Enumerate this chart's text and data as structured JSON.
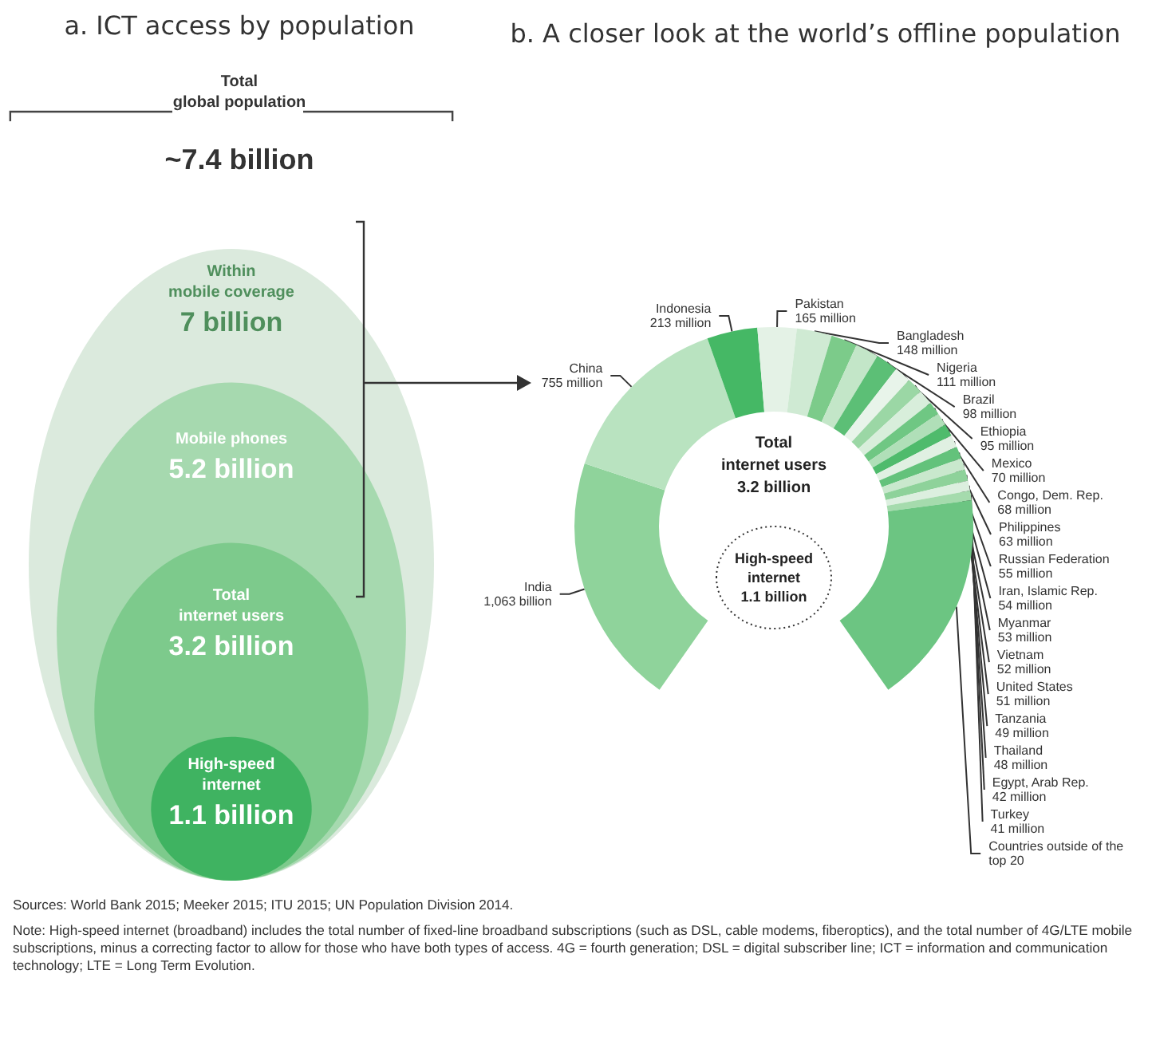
{
  "chart_data": [
    {
      "type": "other",
      "title": "a. ICT access by population",
      "categories": [
        "Total\nglobal population",
        "Within\nmobile coverage",
        "Mobile phones",
        "Total\ninternet users",
        "High-speed\ninternet"
      ],
      "values": [
        7.4,
        7,
        5.2,
        3.2,
        1.1
      ],
      "value_labels": [
        "~7.4 billion",
        "7 billion",
        "5.2 billion",
        "3.2 billion",
        "1.1 billion"
      ],
      "colors": [
        null,
        "#dbeadd",
        "#a6d9af",
        "#7dca8c",
        "#3fb361"
      ]
    },
    {
      "type": "donut",
      "title": "b. A closer look at the world’s offline population",
      "categories": [
        "India",
        "China",
        "Indonesia",
        "Pakistan",
        "Bangladesh",
        "Nigeria",
        "Brazil",
        "Ethiopia",
        "Mexico",
        "Congo, Dem. Rep.",
        "Philippines",
        "Russian Federation",
        "Iran, Islamic Rep.",
        "Myanmar",
        "Vietnam",
        "United States",
        "Tanzania",
        "Thailand",
        "Egypt, Arab Rep.",
        "Turkey",
        "Countries outside of the top 20"
      ],
      "values": [
        1063,
        755,
        213,
        165,
        148,
        111,
        98,
        95,
        70,
        68,
        63,
        55,
        54,
        53,
        52,
        51,
        49,
        48,
        42,
        41,
        906
      ],
      "value_labels": [
        "1,063 billion",
        "755 million",
        "213 million",
        "165 million",
        "148 million",
        "111 million",
        "98 million",
        "95 million",
        "70 million",
        "68 million",
        "63 million",
        "55 million",
        "54 million",
        "53 million",
        "52 million",
        "51 million",
        "49 million",
        "48 million",
        "42 million",
        "41 million",
        null
      ],
      "colors": [
        "#8fd39b",
        "#b9e3c0",
        "#45b865",
        "#e4f2e6",
        "#cfead3",
        "#7ccb8a",
        "#c3e6c8",
        "#5cbf76",
        "#e8f4ea",
        "#9bd7a5",
        "#d8eedb",
        "#6fc783",
        "#b0dfb8",
        "#4fbb6c",
        "#e0f0e2",
        "#63c27b",
        "#c9e8cd",
        "#8ed29a",
        "#dcefdf",
        "#a5dbad",
        "#6cc582"
      ],
      "annotations": [
        "Total\ninternet users\n3.2 billion",
        "High-speed\ninternet\n1.1 billion",
        "Sources: World Bank 2015; Meeker 2015; ITU 2015; UN Population Division 2014.",
        "Note: High-speed internet (broadband) includes the total number of fixed-line broadband subscriptions (such as DSL, cable modems, fiberoptics), and the total number of 4G/LTE mobile subscriptions, minus a correcting factor to allow for those who have both types of access. 4G = fourth generation; DSL = digital subscriber line; ICT = information and communication technology; LTE = Long Term Evolution."
      ]
    }
  ]
}
